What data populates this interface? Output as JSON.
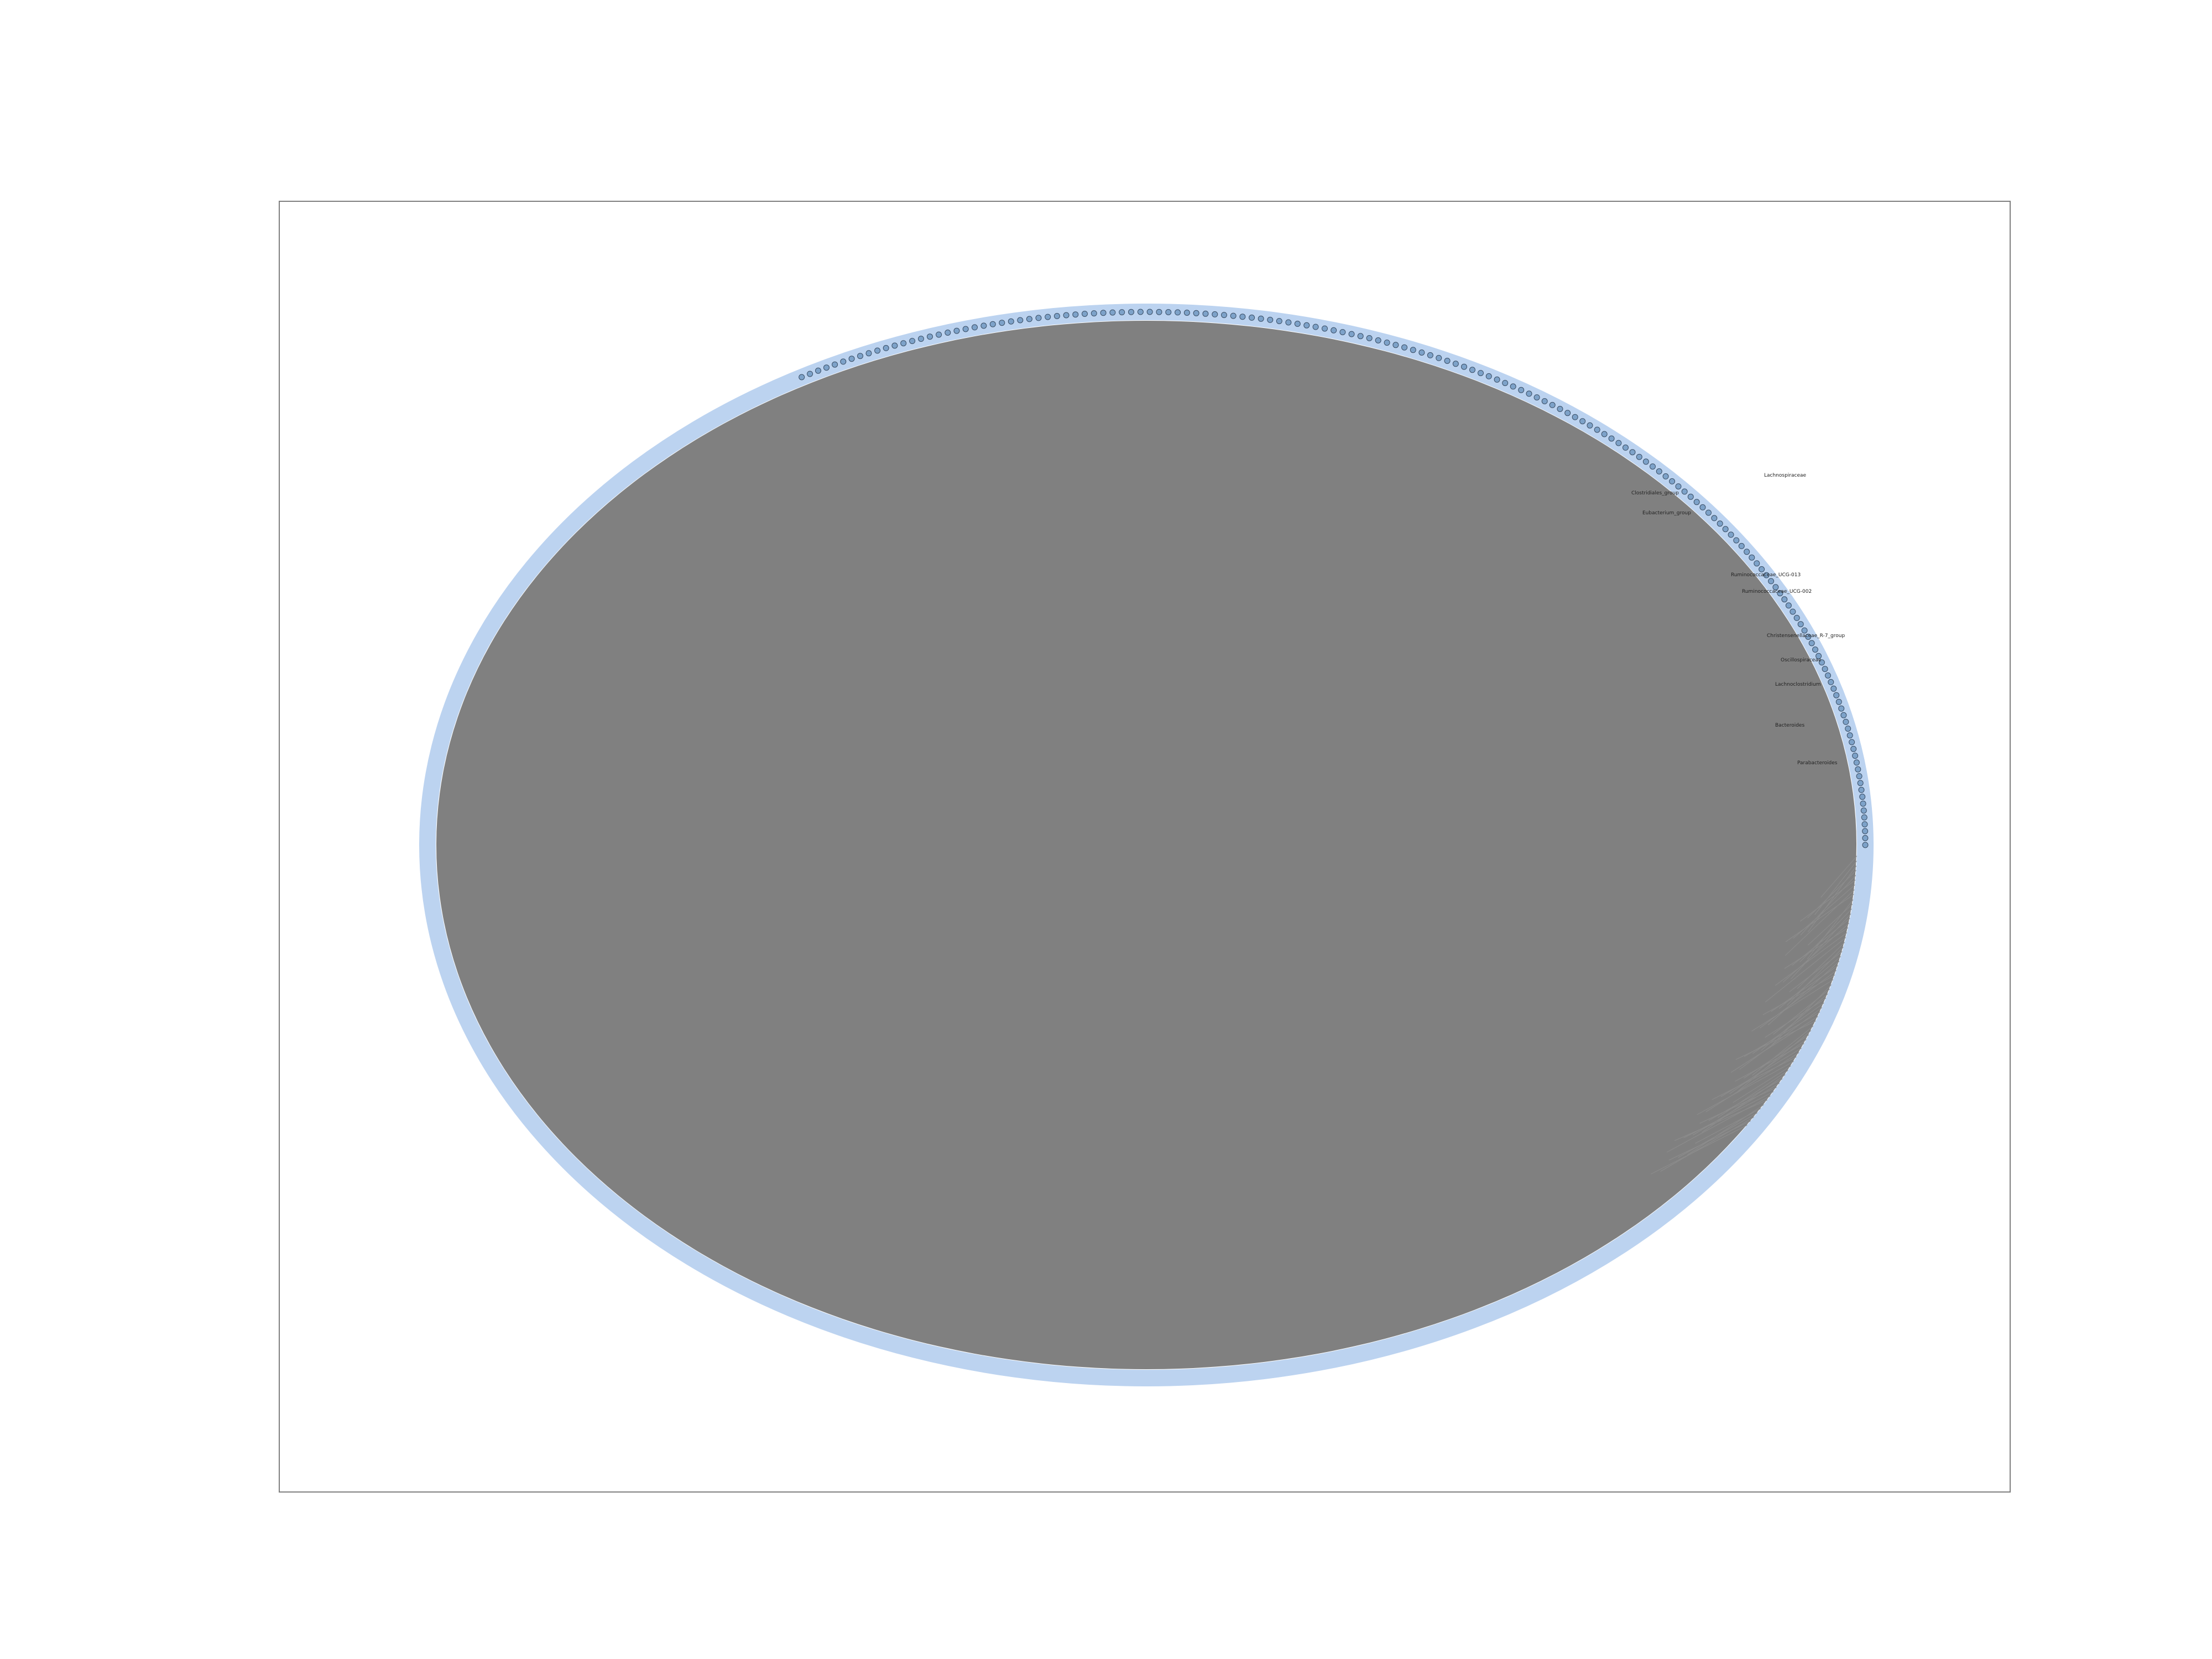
{
  "colors": {
    "node_ring": "#bcd3f0",
    "edges": "#808080",
    "node_fill": "#7da2c9",
    "frame": "#7f7f7f",
    "background": "#ffffff"
  },
  "node_labels": [
    "Lachnospiraceae",
    "Clostridiales_group",
    "Eubacterium_group",
    "Ruminococcaceae_UCG-013",
    "Ruminococcaceae_UCG-002",
    "Christensenellaceae_R-7_group",
    "Oscillospiraceae",
    "Lachnoclostridium",
    "Bacteroides",
    "Parabacteroides"
  ]
}
